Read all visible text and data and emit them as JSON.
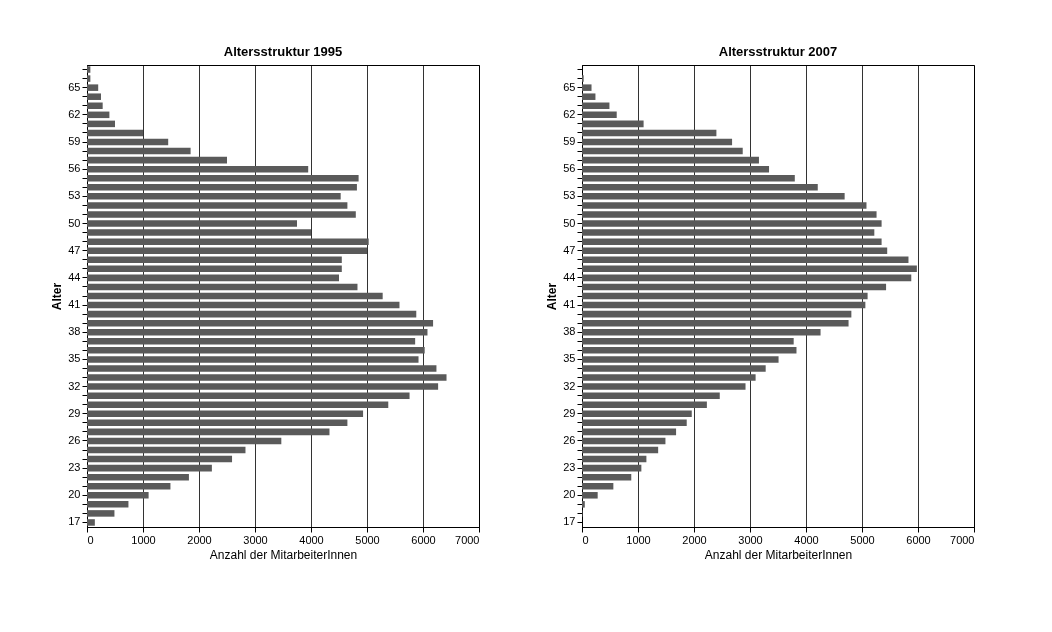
{
  "chart_data": [
    {
      "type": "bar",
      "orientation": "horizontal",
      "title": "Altersstruktur 1995",
      "xlabel": "Anzahl der MitarbeiterInnen",
      "ylabel": "Alter",
      "grid": "x",
      "color": "#5a5a5a",
      "categories": [
        null,
        null,
        "65",
        null,
        null,
        "62",
        null,
        null,
        "59",
        null,
        null,
        "56",
        null,
        null,
        "53",
        null,
        null,
        "50",
        null,
        null,
        "47",
        null,
        null,
        "44",
        null,
        null,
        "41",
        null,
        null,
        "38",
        null,
        null,
        "35",
        null,
        null,
        "32",
        null,
        null,
        "29",
        null,
        null,
        "26",
        null,
        null,
        "23",
        null,
        null,
        "20",
        null,
        null,
        "17"
      ],
      "values": [
        60,
        60,
        200,
        250,
        280,
        400,
        500,
        1000,
        1450,
        1850,
        2500,
        3950,
        4850,
        4820,
        4530,
        4650,
        4800,
        3750,
        4000,
        5030,
        5000,
        4550,
        4550,
        4500,
        4830,
        5280,
        5580,
        5880,
        6180,
        6080,
        5860,
        6030,
        5920,
        6240,
        6420,
        6270,
        5760,
        5380,
        4930,
        4650,
        4330,
        3470,
        2830,
        2590,
        2230,
        1820,
        1490,
        1100,
        740,
        490,
        140
      ],
      "xlim": [
        0,
        7000
      ],
      "xticks": [
        0,
        1000,
        2000,
        3000,
        4000,
        5000,
        6000,
        7000
      ]
    },
    {
      "type": "bar",
      "orientation": "horizontal",
      "title": "Altersstruktur 2007",
      "xlabel": "Anzahl der MitarbeiterInnen",
      "ylabel": "Alter",
      "grid": "x",
      "color": "#5a5a5a",
      "categories": [
        null,
        null,
        "65",
        null,
        null,
        "62",
        null,
        null,
        "59",
        null,
        null,
        "56",
        null,
        null,
        "53",
        null,
        null,
        "50",
        null,
        null,
        "47",
        null,
        null,
        "44",
        null,
        null,
        "41",
        null,
        null,
        "38",
        null,
        null,
        "35",
        null,
        null,
        "32",
        null,
        null,
        "29",
        null,
        null,
        "26",
        null,
        null,
        "23",
        null,
        null,
        "20",
        null,
        null,
        "17"
      ],
      "values": [
        0,
        30,
        170,
        240,
        490,
        620,
        1100,
        2400,
        2680,
        2870,
        3160,
        3340,
        3800,
        4210,
        4690,
        5080,
        5260,
        5350,
        5220,
        5350,
        5450,
        5830,
        5980,
        5880,
        5430,
        5100,
        5060,
        4810,
        4760,
        4260,
        3780,
        3830,
        3510,
        3280,
        3100,
        2920,
        2460,
        2230,
        1960,
        1870,
        1680,
        1490,
        1360,
        1150,
        1060,
        880,
        560,
        280,
        50,
        10,
        0
      ],
      "xlim": [
        0,
        7000
      ],
      "xticks": [
        0,
        1000,
        2000,
        3000,
        4000,
        5000,
        6000,
        7000
      ]
    }
  ]
}
